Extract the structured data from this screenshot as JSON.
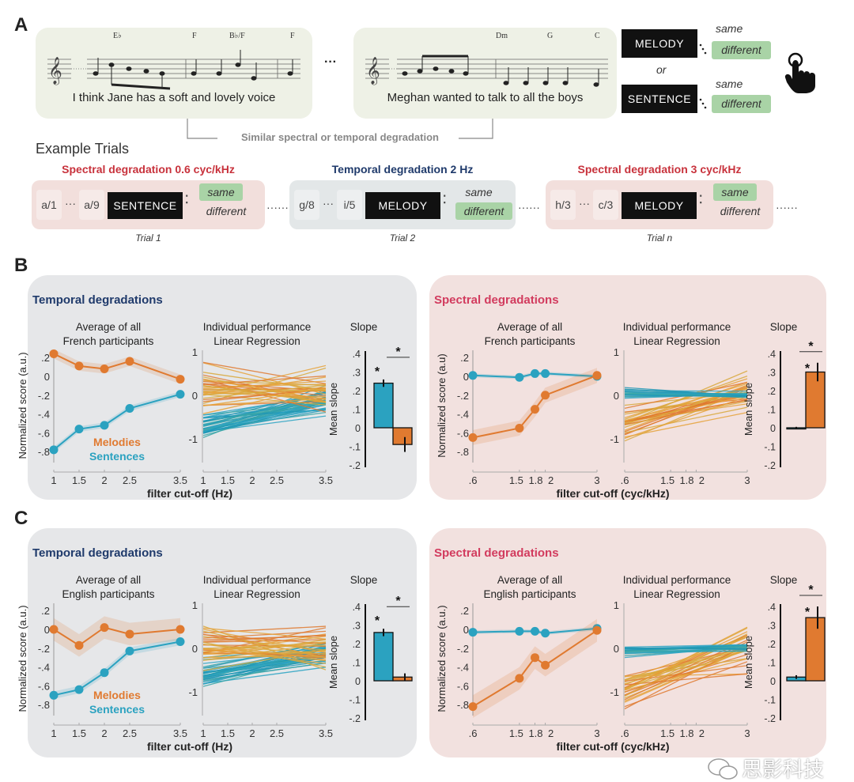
{
  "panel_letters": {
    "a": "A",
    "b": "B",
    "c": "C"
  },
  "panel_a": {
    "stimulus_1": {
      "sentence": "I think Jane has a soft and lovely voice",
      "chords": [
        "E♭",
        "F",
        "B♭/F",
        "F"
      ]
    },
    "ellipsis": "···",
    "stimulus_2": {
      "sentence": "Meghan wanted to talk to all the boys",
      "chords": [
        "Dm",
        "G",
        "C"
      ]
    },
    "response": {
      "melody": "MELODY",
      "sentence": "SENTENCE",
      "same": "same",
      "different": "different",
      "or": "or",
      "icon": "hand-pointer-icon"
    },
    "bracket_label": "Similar spectral or temporal degradation",
    "example_trials_label": "Example Trials",
    "trials": [
      {
        "title": "Spectral degradation 0.6 cyc/kHz",
        "title_color": "#c8323c",
        "bg": "#f2dfdc",
        "tags": [
          "a/1",
          "a/9"
        ],
        "task": "SENTENCE",
        "highlight": "same",
        "label": "Trial 1"
      },
      {
        "title": "Temporal degradation 2 Hz",
        "title_color": "#1f3a6b",
        "bg": "#e3e7e8",
        "tags": [
          "g/8",
          "i/5"
        ],
        "task": "MELODY",
        "highlight": "different",
        "label": "Trial 2"
      },
      {
        "title": "Spectral degradation 3 cyc/kHz",
        "title_color": "#c8323c",
        "bg": "#f2dfdc",
        "tags": [
          "h/3",
          "c/3"
        ],
        "task": "MELODY",
        "highlight": "same",
        "label": "Trial n"
      }
    ]
  },
  "colors": {
    "melodies": "#e07a30",
    "sentences": "#2ba2c0",
    "temporal_title": "#1f3a6b",
    "spectral_title": "#d23b5e",
    "temporal_bg": "#e6e7e9",
    "spectral_bg": "#f2e1df"
  },
  "watermark": {
    "text": "思影科技",
    "icon": "wechat-icon"
  },
  "chart_data": [
    {
      "panel": "B",
      "kind": "temporal",
      "type": "line",
      "title": "Temporal degradations",
      "xlabel": "filter cut-off (Hz)",
      "average": {
        "title": [
          "Average of all",
          "French participants"
        ],
        "ylabel": "Normalized score (a.u.)",
        "x_ticks": [
          1,
          1.5,
          2,
          2.5,
          3.5
        ],
        "x_tick_labels": [
          "1",
          "1.5",
          "2",
          "2.5",
          "3.5"
        ],
        "y_ticks": [
          0.2,
          0,
          -0.2,
          -0.4,
          -0.6,
          -0.8
        ],
        "y_tick_labels": [
          ".2",
          "0",
          "-.2",
          "-.4",
          "-.6",
          "-.8"
        ],
        "legend": [
          "Melodies",
          "Sentences"
        ],
        "series": [
          {
            "name": "Melodies",
            "x": [
              1,
              1.5,
              2,
              2.5,
              3.5
            ],
            "y": [
              0.24,
              0.11,
              0.08,
              0.16,
              -0.03
            ],
            "band": 0.05
          },
          {
            "name": "Sentences",
            "x": [
              1,
              1.5,
              2,
              2.5,
              3.5
            ],
            "y": [
              -0.78,
              -0.56,
              -0.52,
              -0.34,
              -0.19
            ],
            "band": 0.03
          }
        ]
      },
      "individual": {
        "title": [
          "Individual performance",
          "Linear Regression"
        ],
        "y_ticks": [
          1,
          0,
          -1
        ],
        "y_tick_labels": [
          "1",
          "0",
          "-1"
        ],
        "x_ticks": [
          1,
          1.5,
          2,
          2.5,
          3.5
        ],
        "x_tick_labels": [
          "1",
          "1.5",
          "2",
          "2.5",
          "3.5"
        ]
      },
      "slope": {
        "title": "Slope",
        "ylabel": "Mean slope",
        "type": "bar",
        "y_ticks": [
          0.4,
          0.3,
          0.2,
          0.1,
          0,
          -0.1,
          -0.2
        ],
        "y_tick_labels": [
          ".4",
          ".3",
          ".2",
          ".1",
          "0",
          "-.1",
          "-.2"
        ],
        "bars": [
          {
            "name": "Sentences",
            "value": 0.24,
            "err": 0.02,
            "star": true
          },
          {
            "name": "Melodies",
            "value": -0.09,
            "err": 0.04,
            "star": false
          }
        ],
        "comparison_star": true,
        "star": "*"
      }
    },
    {
      "panel": "B",
      "kind": "spectral",
      "type": "line",
      "title": "Spectral degradations",
      "xlabel": "filter cut-off (cyc/kHz)",
      "average": {
        "title": [
          "Average of all",
          "French participants"
        ],
        "ylabel": "Normalized score (a.u)",
        "x_ticks": [
          0.6,
          1.5,
          1.8,
          2,
          3
        ],
        "x_tick_labels": [
          ".6",
          "1.5",
          "1.8",
          "2",
          "3"
        ],
        "y_ticks": [
          0.2,
          0,
          -0.2,
          -0.4,
          -0.6,
          -0.8
        ],
        "y_tick_labels": [
          ".2",
          "0",
          "-.2",
          "-.4",
          "-.6",
          "-.8"
        ],
        "series": [
          {
            "name": "Sentences",
            "x": [
              0.6,
              1.5,
              1.8,
              2,
              3
            ],
            "y": [
              0.01,
              -0.01,
              0.03,
              0.03,
              0.0
            ],
            "band": 0.02
          },
          {
            "name": "Melodies",
            "x": [
              0.6,
              1.5,
              1.8,
              2,
              3
            ],
            "y": [
              -0.65,
              -0.55,
              -0.35,
              -0.2,
              0.01
            ],
            "band": 0.08
          }
        ]
      },
      "individual": {
        "title": [
          "Individual performance",
          "Linear Regression"
        ],
        "y_ticks": [
          1,
          0,
          -1
        ],
        "y_tick_labels": [
          "1",
          "0",
          "-1"
        ],
        "x_ticks": [
          0.6,
          1.5,
          1.8,
          2,
          3
        ],
        "x_tick_labels": [
          ".6",
          "1.5",
          "1.8",
          "2",
          "3"
        ]
      },
      "slope": {
        "title": "Slope",
        "ylabel": "Mean slope",
        "type": "bar",
        "y_ticks": [
          0.4,
          0.3,
          0.2,
          0.1,
          0,
          -0.1,
          -0.2
        ],
        "y_tick_labels": [
          ".4",
          ".3",
          ".2",
          ".1",
          "0",
          "-.1",
          "-.2"
        ],
        "bars": [
          {
            "name": "Sentences",
            "value": 0.0,
            "err": 0.005,
            "star": false
          },
          {
            "name": "Melodies",
            "value": 0.3,
            "err": 0.05,
            "star": true
          }
        ],
        "comparison_star": true,
        "star": "*"
      }
    },
    {
      "panel": "C",
      "kind": "temporal",
      "type": "line",
      "title": "Temporal degradations",
      "xlabel": "filter cut-off (Hz)",
      "average": {
        "title": [
          "Average of all",
          "English participants"
        ],
        "ylabel": "Normalized score (a.u.)",
        "x_ticks": [
          1,
          1.5,
          2,
          2.5,
          3.5
        ],
        "x_tick_labels": [
          "1",
          "1.5",
          "2",
          "2.5",
          "3.5"
        ],
        "y_ticks": [
          0.2,
          0,
          -0.2,
          -0.4,
          -0.6,
          -0.8
        ],
        "y_tick_labels": [
          ".2",
          "0",
          "-.2",
          "-.4",
          "-.6",
          "-.8"
        ],
        "legend": [
          "Melodies",
          "Sentences"
        ],
        "series": [
          {
            "name": "Melodies",
            "x": [
              1,
              1.5,
              2,
              2.5,
              3.5
            ],
            "y": [
              0.0,
              -0.17,
              0.02,
              -0.05,
              0.0
            ],
            "band": 0.12
          },
          {
            "name": "Sentences",
            "x": [
              1,
              1.5,
              2,
              2.5,
              3.5
            ],
            "y": [
              -0.7,
              -0.64,
              -0.46,
              -0.23,
              -0.13
            ],
            "band": 0.04
          }
        ]
      },
      "individual": {
        "title": [
          "Individual performance",
          "Linear Regression"
        ],
        "y_ticks": [
          1,
          0,
          -1
        ],
        "y_tick_labels": [
          "1",
          "0",
          "-1"
        ],
        "x_ticks": [
          1,
          1.5,
          2,
          2.5,
          3.5
        ],
        "x_tick_labels": [
          "1",
          "1.5",
          "2",
          "2.5",
          "3.5"
        ]
      },
      "slope": {
        "title": "Slope",
        "ylabel": "Mean slope",
        "type": "bar",
        "y_ticks": [
          0.4,
          0.3,
          0.2,
          0.1,
          0,
          -0.1,
          -0.2
        ],
        "y_tick_labels": [
          ".4",
          ".3",
          ".2",
          ".1",
          "0",
          "-.1",
          "-.2"
        ],
        "bars": [
          {
            "name": "Sentences",
            "value": 0.26,
            "err": 0.02,
            "star": true
          },
          {
            "name": "Melodies",
            "value": 0.02,
            "err": 0.02,
            "star": false
          }
        ],
        "comparison_star": true,
        "star": "*"
      }
    },
    {
      "panel": "C",
      "kind": "spectral",
      "type": "line",
      "title": "Spectral degradations",
      "xlabel": "filter cut-off (cyc/kHz)",
      "average": {
        "title": [
          "Average of all",
          "English participants"
        ],
        "ylabel": "Normalized score (a.u.)",
        "x_ticks": [
          0.6,
          1.5,
          1.8,
          2,
          3
        ],
        "x_tick_labels": [
          ".6",
          "1.5",
          "1.8",
          "2",
          "3"
        ],
        "y_ticks": [
          0.2,
          0,
          -0.2,
          -0.4,
          -0.6,
          -0.8
        ],
        "y_tick_labels": [
          ".2",
          "0",
          "-.2",
          "-.4",
          "-.6",
          "-.8"
        ],
        "series": [
          {
            "name": "Sentences",
            "x": [
              0.6,
              1.5,
              1.8,
              2,
              3
            ],
            "y": [
              -0.03,
              -0.02,
              -0.02,
              -0.04,
              0.01
            ],
            "band": 0.02
          },
          {
            "name": "Melodies",
            "x": [
              0.6,
              1.5,
              1.8,
              2,
              3
            ],
            "y": [
              -0.82,
              -0.52,
              -0.3,
              -0.38,
              -0.01
            ],
            "band": 0.12
          }
        ]
      },
      "individual": {
        "title": [
          "Individual performance",
          "Linear Regression"
        ],
        "y_ticks": [
          1,
          0,
          -1
        ],
        "y_tick_labels": [
          "1",
          "0",
          "-1"
        ],
        "x_ticks": [
          0.6,
          1.5,
          1.8,
          2,
          3
        ],
        "x_tick_labels": [
          ".6",
          "1.5",
          "1.8",
          "2",
          "3"
        ]
      },
      "slope": {
        "title": "Slope",
        "ylabel": "Mean slope",
        "type": "bar",
        "y_ticks": [
          0.4,
          0.3,
          0.2,
          0.1,
          0,
          -0.1,
          -0.2
        ],
        "y_tick_labels": [
          ".4",
          ".3",
          ".2",
          ".1",
          "0",
          "-.1",
          "-.2"
        ],
        "bars": [
          {
            "name": "Sentences",
            "value": 0.02,
            "err": 0.01,
            "star": false
          },
          {
            "name": "Melodies",
            "value": 0.34,
            "err": 0.06,
            "star": true
          }
        ],
        "comparison_star": true,
        "star": "*"
      }
    }
  ]
}
